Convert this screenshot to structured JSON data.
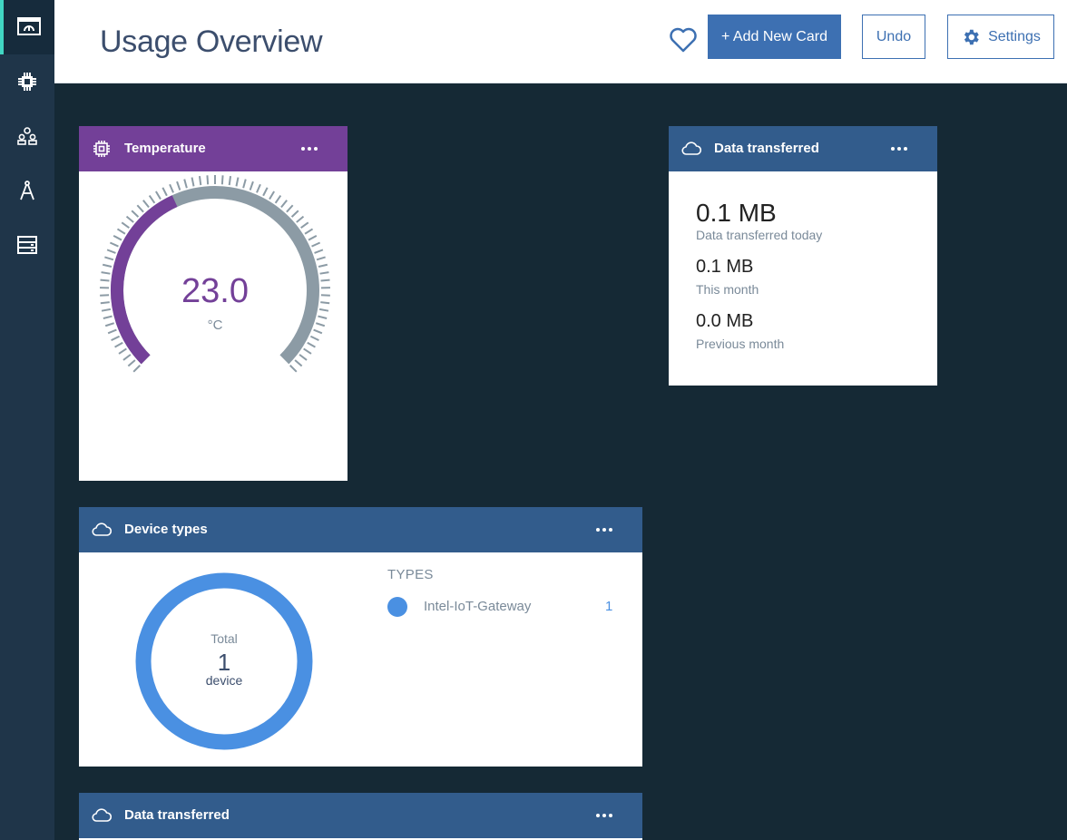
{
  "sidebar": {
    "items": [
      {
        "icon": "dashboard-icon",
        "active": true
      },
      {
        "icon": "chip-icon",
        "active": false
      },
      {
        "icon": "members-icon",
        "active": false
      },
      {
        "icon": "compass-icon",
        "active": false
      },
      {
        "icon": "server-icon",
        "active": false
      }
    ]
  },
  "header": {
    "title": "Usage Overview",
    "favorite_icon": "heart-icon",
    "add_card_label": "+ Add New Card",
    "undo_label": "Undo",
    "settings_label": "Settings",
    "settings_icon": "gear-icon"
  },
  "cards": {
    "temperature": {
      "title": "Temperature",
      "icon": "chip-icon",
      "value": "23.0",
      "unit": "°C",
      "gauge_fraction": 0.41
    },
    "data_transferred": {
      "title": "Data transferred",
      "icon": "cloud-icon",
      "today_value": "0.1 MB",
      "today_label": "Data transferred today",
      "month_value": "0.1 MB",
      "month_label": "This month",
      "prev_value": "0.0 MB",
      "prev_label": "Previous month"
    },
    "device_types": {
      "title": "Device types",
      "icon": "cloud-icon",
      "total_label": "Total",
      "total_value": "1",
      "total_unit": "device",
      "types_heading": "TYPES",
      "types": [
        {
          "name": "Intel-IoT-Gateway",
          "count": "1"
        }
      ]
    },
    "data_transferred_2": {
      "title": "Data transferred",
      "icon": "cloud-icon"
    }
  },
  "colors": {
    "accent": "#3d70b2",
    "purple": "#734098",
    "header_blue": "#325c8c",
    "donut": "#4a90e2",
    "background": "#152935",
    "active_marker": "#41d6c3"
  }
}
